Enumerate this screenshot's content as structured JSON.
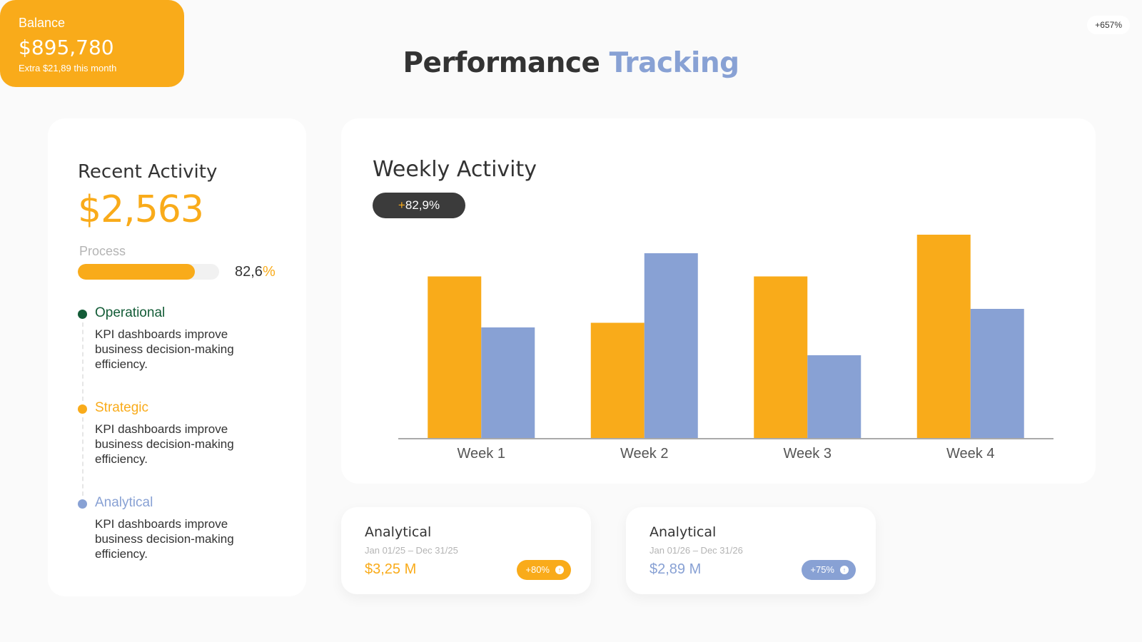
{
  "header": {
    "title_main": "Performance",
    "title_accent": "Tracking"
  },
  "colors": {
    "orange": "#f9ab1a",
    "blue": "#88a1d4",
    "green": "#135c37",
    "dark": "#333333"
  },
  "recent": {
    "title": "Recent Activity",
    "value": "$2,563",
    "process_label": "Process",
    "progress_percent": 82.6,
    "progress_number": "82,6",
    "progress_sign": "%",
    "items": [
      {
        "name": "Operational",
        "color": "#135c37",
        "desc": "KPI dashboards improve business decision-making efficiency."
      },
      {
        "name": "Strategic",
        "color": "#f9ab1a",
        "desc": "KPI dashboards improve business decision-making efficiency."
      },
      {
        "name": "Analytical",
        "color": "#88a1d4",
        "desc": "KPI dashboards improve business decision-making efficiency."
      }
    ]
  },
  "weekly": {
    "title": "Weekly Activity",
    "badge_sign": "+",
    "badge_value": "82,9%"
  },
  "chart_data": {
    "type": "bar",
    "title": "Weekly Activity",
    "categories": [
      "Week 1",
      "Week 2",
      "Week 3",
      "Week 4"
    ],
    "series": [
      {
        "color": "#f9ab1a",
        "values": [
          70,
          50,
          70,
          88
        ]
      },
      {
        "color": "#88a1d4",
        "values": [
          48,
          80,
          36,
          56
        ]
      }
    ],
    "ylim": [
      0,
      100
    ],
    "grid": false,
    "legend": "none"
  },
  "stats": [
    {
      "title": "Analytical",
      "range": "Jan 01/25 – Dec 31/25",
      "value": "$3,25 M",
      "badge": "+80%",
      "color": "#f9ab1a"
    },
    {
      "title": "Analytical",
      "range": "Jan 01/26 – Dec 31/26",
      "value": "$2,89 M",
      "badge": "+75%",
      "color": "#88a1d4"
    }
  ],
  "balance": {
    "title": "Balance",
    "value": "$895,780",
    "note": "Extra $21,89 this month",
    "badge": "+657%"
  }
}
